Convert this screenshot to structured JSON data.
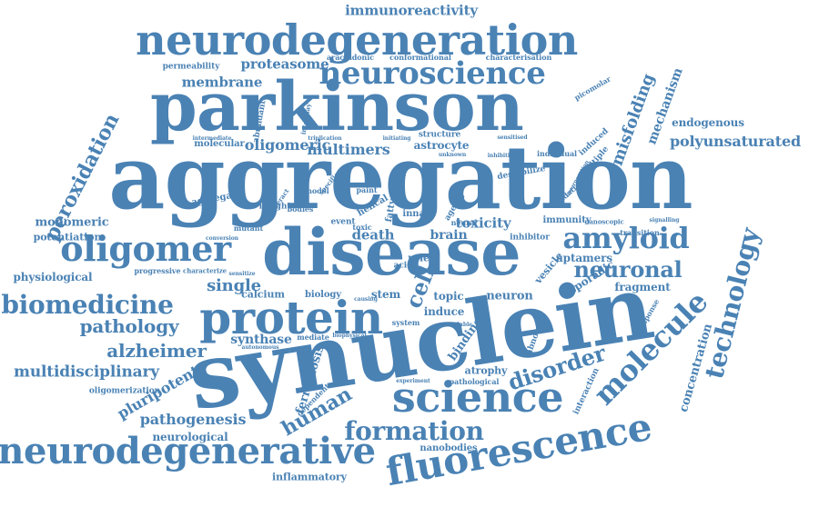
{
  "style": {
    "word_color": "#4a82b4",
    "background": "#ffffff"
  },
  "words": [
    {
      "text": "aggregation"
    },
    {
      "text": "synuclein"
    },
    {
      "text": "parkinson"
    },
    {
      "text": "disease"
    },
    {
      "text": "neurodegeneration"
    },
    {
      "text": "protein"
    },
    {
      "text": "science"
    },
    {
      "text": "fluorescence"
    },
    {
      "text": "neurodegenerative"
    },
    {
      "text": "neuroscience"
    },
    {
      "text": "oligomer"
    },
    {
      "text": "amyloid"
    },
    {
      "text": "molecule"
    },
    {
      "text": "technology"
    },
    {
      "text": "biomedicine"
    },
    {
      "text": "formation"
    },
    {
      "text": "disorder"
    },
    {
      "text": "neuronal"
    },
    {
      "text": "cell"
    },
    {
      "text": "human"
    },
    {
      "text": "peroxidation"
    },
    {
      "text": "polyunsaturated"
    },
    {
      "text": "misfolding"
    },
    {
      "text": "mechanism"
    },
    {
      "text": "pathology"
    },
    {
      "text": "alzheimer"
    },
    {
      "text": "single"
    },
    {
      "text": "multidisciplinary"
    },
    {
      "text": "pluripotent"
    },
    {
      "text": "pathogenesis"
    },
    {
      "text": "immunoreactivity"
    },
    {
      "text": "membrane"
    },
    {
      "text": "proteasome"
    },
    {
      "text": "oligomeric"
    },
    {
      "text": "multimers"
    },
    {
      "text": "concentration"
    },
    {
      "text": "synthase"
    },
    {
      "text": "endogenous"
    },
    {
      "text": "ferroptosis"
    },
    {
      "text": "toxicity"
    },
    {
      "text": "brain"
    },
    {
      "text": "death"
    },
    {
      "text": "monomeric"
    },
    {
      "text": "physiological"
    },
    {
      "text": "potentiation"
    },
    {
      "text": "calcium"
    },
    {
      "text": "aptamers"
    },
    {
      "text": "fragment"
    },
    {
      "text": "neuron"
    },
    {
      "text": "sporadic"
    },
    {
      "text": "topic"
    },
    {
      "text": "induce"
    },
    {
      "text": "stem"
    },
    {
      "text": "binding"
    },
    {
      "text": "astrocyte"
    },
    {
      "text": "neurological"
    },
    {
      "text": "inflammatory"
    },
    {
      "text": "nanobodies"
    },
    {
      "text": "atrophy"
    },
    {
      "text": "permeability"
    },
    {
      "text": "arachidonic"
    },
    {
      "text": "conformational"
    },
    {
      "text": "characterisation"
    },
    {
      "text": "abundant"
    },
    {
      "text": "interplay"
    },
    {
      "text": "picomolar"
    },
    {
      "text": "molecular"
    },
    {
      "text": "intermediate"
    },
    {
      "text": "triplication"
    },
    {
      "text": "initiating"
    },
    {
      "text": "structure"
    },
    {
      "text": "sensitised"
    },
    {
      "text": "individual"
    },
    {
      "text": "induced"
    },
    {
      "text": "multiple"
    },
    {
      "text": "unknown"
    },
    {
      "text": "inhibition"
    },
    {
      "text": "aggregate"
    },
    {
      "text": "interact"
    },
    {
      "text": "insight"
    },
    {
      "text": "model"
    },
    {
      "text": "specific"
    },
    {
      "text": "paint"
    },
    {
      "text": "helical"
    },
    {
      "text": "innate"
    },
    {
      "text": "ageing"
    },
    {
      "text": "destabilize"
    },
    {
      "text": "oxidation"
    },
    {
      "text": "incorporation"
    },
    {
      "text": "bodies"
    },
    {
      "text": "event"
    },
    {
      "text": "toxic"
    },
    {
      "text": "fatty"
    },
    {
      "text": "neural"
    },
    {
      "text": "immunity"
    },
    {
      "text": "nanoscopic"
    },
    {
      "text": "signalling"
    },
    {
      "text": "inhibitor"
    },
    {
      "text": "transition"
    },
    {
      "text": "mutant"
    },
    {
      "text": "conversion"
    },
    {
      "text": "role"
    },
    {
      "text": "vesicle"
    },
    {
      "text": "progressive"
    },
    {
      "text": "characterize"
    },
    {
      "text": "sensitize"
    },
    {
      "text": "biology"
    },
    {
      "text": "causing"
    },
    {
      "text": "acid"
    },
    {
      "text": "life"
    },
    {
      "text": "mediate"
    },
    {
      "text": "biophysical"
    },
    {
      "text": "system"
    },
    {
      "text": "soluble"
    },
    {
      "text": "abnormal"
    },
    {
      "text": "response"
    },
    {
      "text": "pathological"
    },
    {
      "text": "interaction"
    },
    {
      "text": "oligomerization"
    },
    {
      "text": "autonomous"
    },
    {
      "text": "dependent"
    },
    {
      "text": "experiment"
    }
  ]
}
